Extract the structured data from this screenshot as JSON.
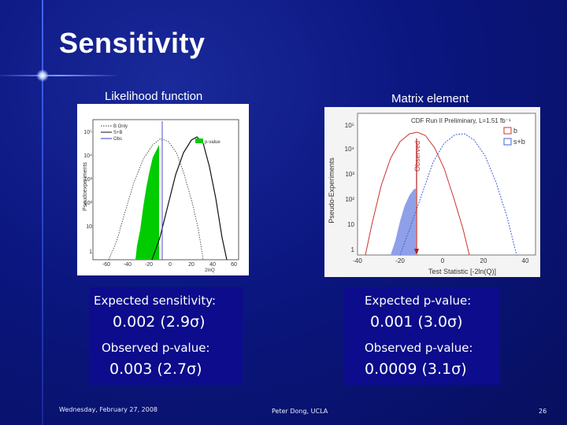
{
  "title": "Sensitivity",
  "left_caption": "Likelihood function",
  "right_caption": "Matrix element",
  "left_plot": {
    "ylabel": "Pseudoexperiments",
    "xlabel": "2lnQ",
    "legend": [
      "B Only",
      "S+B",
      "Obs",
      "p-value"
    ],
    "yticks": [
      "10⁵",
      "10⁴",
      "10³",
      "10²",
      "10",
      "1"
    ],
    "xticks": [
      "-60",
      "-40",
      "-20",
      "0",
      "20",
      "40",
      "60"
    ]
  },
  "right_plot": {
    "title": "CDF Run II Preliminary, L=1.51 fb⁻¹",
    "ylabel": "Pseudo-Experiments",
    "xlabel": "Test Statistic [-2ln(Q)]",
    "observed_label": "Observed",
    "legend": [
      "b",
      "s+b"
    ],
    "yticks": [
      "10⁵",
      "10⁴",
      "10³",
      "10²",
      "10",
      "1"
    ],
    "xticks": [
      "-40",
      "-20",
      "0",
      "20",
      "40"
    ]
  },
  "boxes": {
    "exp_sens_label": "Expected sensitivity:",
    "exp_sens_value": "0.002 (2.9σ)",
    "exp_p_label": "Expected p-value:",
    "exp_p_value": "0.001 (3.0σ)",
    "obs_left_label": "Observed p-value:",
    "obs_left_value": "0.003 (2.7σ)",
    "obs_right_label": "Observed p-value:",
    "obs_right_value": "0.0009 (3.1σ)"
  },
  "footer": {
    "date": "Wednesday, February 27, 2008",
    "author": "Peter Dong, UCLA",
    "page": "26"
  },
  "colors": {
    "box": "#0c0c8c",
    "background": "#0b1680",
    "b_curve": "#d03030",
    "sb_curve": "#4060d8",
    "pvalue_fill": "#00cc00"
  }
}
